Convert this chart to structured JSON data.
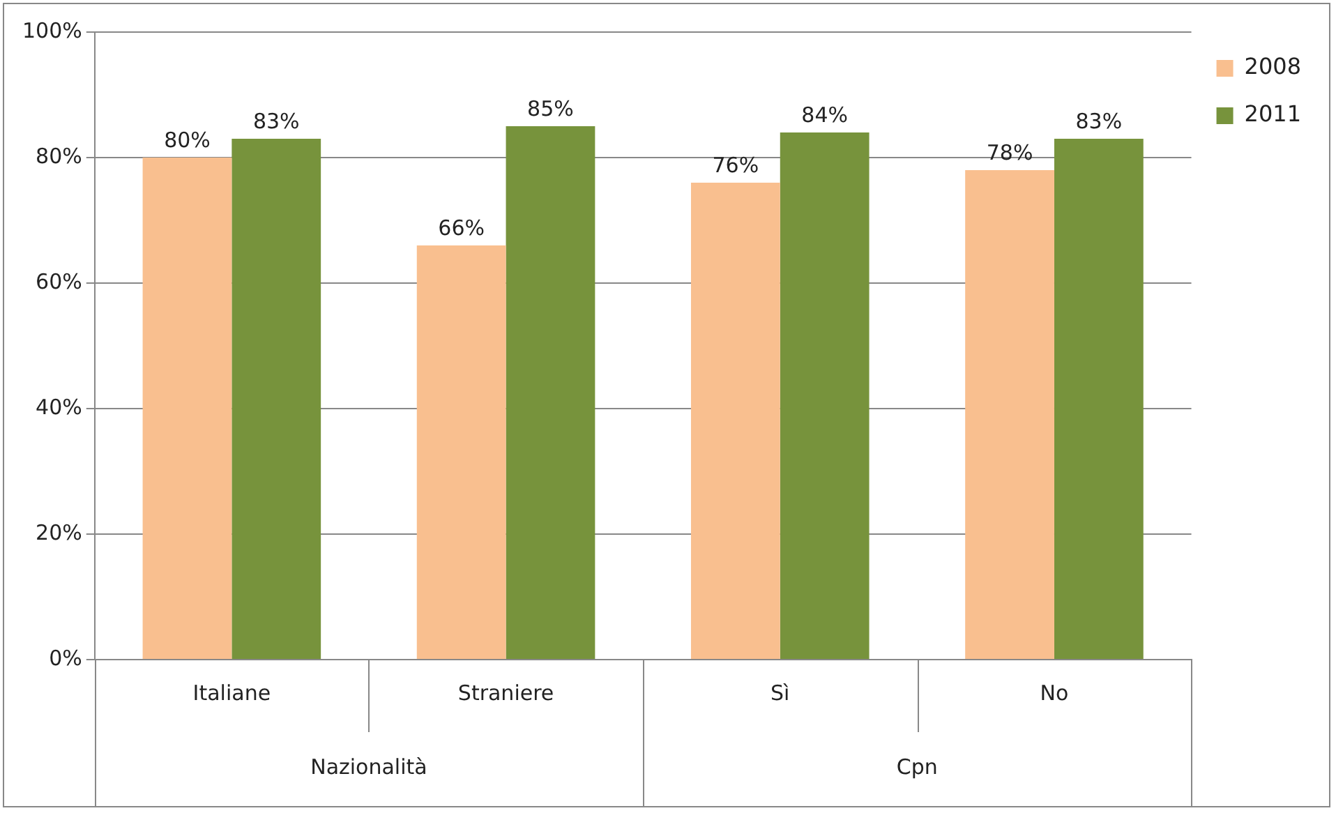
{
  "chart_data": {
    "type": "bar",
    "categories": [
      "Italiane",
      "Straniere",
      "Sì",
      "No"
    ],
    "annotations": [
      "Nazionalità",
      "Cpn"
    ],
    "series": [
      {
        "name": "2008",
        "color": "#f9bf8f",
        "values": [
          80,
          66,
          76,
          78
        ],
        "value_labels": [
          "80%",
          "66%",
          "76%",
          "78%"
        ]
      },
      {
        "name": "2011",
        "color": "#77933c",
        "values": [
          83,
          85,
          84,
          83
        ],
        "value_labels": [
          "83%",
          "85%",
          "84%",
          "83%"
        ]
      }
    ],
    "ylim": [
      0,
      100
    ],
    "yticks": [
      {
        "value": 0,
        "label": "0%"
      },
      {
        "value": 20,
        "label": "20%"
      },
      {
        "value": 40,
        "label": "40%"
      },
      {
        "value": 60,
        "label": "60%"
      },
      {
        "value": 80,
        "label": "80%"
      },
      {
        "value": 100,
        "label": "100%"
      }
    ],
    "grid": "y",
    "legend": "top right"
  }
}
